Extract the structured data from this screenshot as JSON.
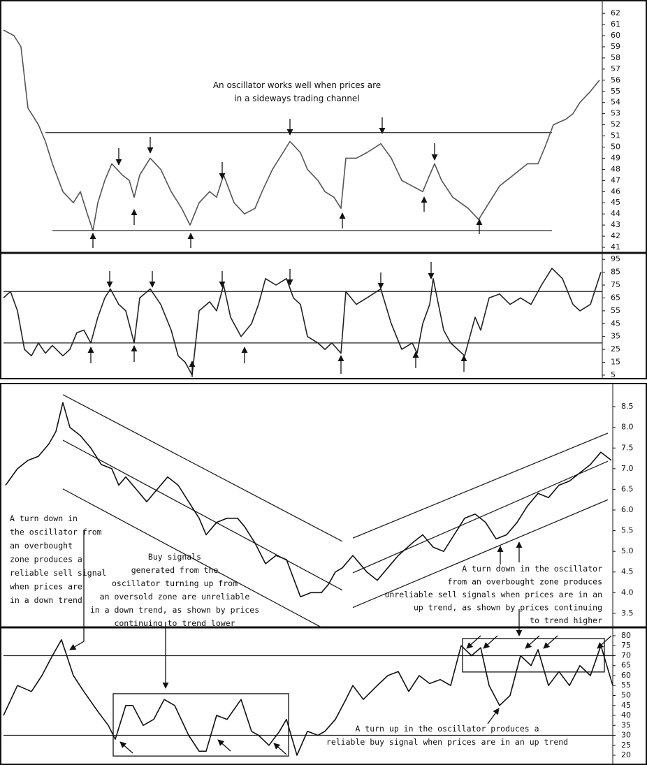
{
  "chart_data": [
    {
      "type": "line",
      "color": "#555555",
      "annotations": [
        [
          "An oscillator works well when prices are",
          "in a sideways trading channel"
        ]
      ],
      "x": [
        5,
        20,
        30,
        40,
        55,
        65,
        75,
        90,
        105,
        115,
        125,
        133,
        140,
        150,
        160,
        175,
        185,
        192,
        200,
        215,
        230,
        245,
        260,
        272,
        285,
        300,
        310,
        320,
        335,
        350,
        365,
        375,
        390,
        405,
        415,
        430,
        440,
        455,
        465,
        478,
        488,
        495,
        510,
        525,
        545,
        560,
        575,
        590,
        605,
        615,
        622,
        632,
        648,
        670,
        685,
        700,
        715,
        735,
        755,
        770,
        780,
        792,
        810,
        820,
        830,
        845,
        858
      ],
      "values": [
        60.5,
        60,
        59,
        53.5,
        52,
        50.5,
        48.5,
        46,
        45,
        46,
        44,
        42.5,
        45,
        47,
        48.5,
        47.5,
        47,
        45.5,
        47.5,
        49,
        48,
        46,
        44.5,
        43,
        45,
        46,
        45.5,
        47.5,
        45,
        44,
        44.5,
        46,
        48,
        49.5,
        50.5,
        49.5,
        48,
        47,
        46,
        45.5,
        44.5,
        49,
        49,
        49.5,
        50.3,
        49,
        47,
        46.5,
        46,
        47.5,
        48.5,
        47,
        45.5,
        44.5,
        43.5,
        45,
        46.5,
        47.5,
        48.5,
        48.5,
        50,
        52,
        52.5,
        53,
        54,
        55,
        56
      ],
      "lines": [
        {
          "x": [
            65,
            790
          ],
          "y": [
            51.3,
            51.3
          ]
        },
        {
          "x": [
            75,
            790
          ],
          "y": [
            42.5,
            42.5
          ]
        }
      ],
      "xlim": [
        5,
        862
      ],
      "ylim": [
        40.5,
        63.2
      ],
      "yticks": [
        41,
        42,
        43,
        44,
        45,
        46,
        47,
        48,
        49,
        50,
        51,
        52,
        53,
        54,
        55,
        56,
        57,
        58,
        59,
        60,
        61,
        62
      ]
    },
    {
      "type": "line",
      "color": "#222222",
      "x": [
        5,
        15,
        25,
        35,
        45,
        55,
        65,
        75,
        90,
        100,
        110,
        120,
        130,
        140,
        150,
        158,
        170,
        180,
        192,
        200,
        215,
        230,
        245,
        255,
        265,
        275,
        285,
        300,
        310,
        320,
        330,
        345,
        360,
        370,
        380,
        395,
        410,
        420,
        430,
        440,
        455,
        465,
        475,
        488,
        495,
        510,
        525,
        545,
        560,
        575,
        590,
        597,
        605,
        615,
        620,
        635,
        645,
        655,
        665,
        680,
        688,
        700,
        715,
        730,
        745,
        760,
        775,
        790,
        805,
        820,
        830,
        845,
        860
      ],
      "values": [
        65,
        70,
        55,
        25,
        20,
        30,
        22,
        28,
        20,
        25,
        38,
        40,
        30,
        50,
        65,
        72,
        60,
        55,
        30,
        65,
        72,
        60,
        40,
        20,
        15,
        5,
        55,
        62,
        55,
        75,
        50,
        35,
        45,
        60,
        80,
        75,
        80,
        65,
        60,
        35,
        30,
        25,
        30,
        22,
        70,
        60,
        65,
        72,
        45,
        25,
        30,
        22,
        45,
        60,
        80,
        40,
        30,
        25,
        20,
        50,
        40,
        65,
        68,
        60,
        65,
        60,
        75,
        88,
        80,
        60,
        55,
        60,
        85
      ],
      "lines": [
        {
          "x": [
            5,
            862
          ],
          "y": [
            70,
            70
          ]
        },
        {
          "x": [
            5,
            862
          ],
          "y": [
            30,
            30
          ]
        }
      ],
      "xlim": [
        5,
        862
      ],
      "ylim": [
        1.7,
        100
      ],
      "yticks": [
        5,
        15,
        25,
        35,
        45,
        55,
        65,
        75,
        85,
        95
      ]
    },
    {
      "type": "line",
      "color": "#111111",
      "annotations": [
        [
          "A turn down in",
          "the oscillator from",
          "an overbought",
          "zone produces a",
          "reliable sell signal",
          "when prices are",
          "in a down trend"
        ],
        [
          "Buy signals",
          "generated from the",
          "oscillator turning up from",
          "an oversold zone are unreliable",
          "in a down trend, as shown by prices",
          "continuing to trend lower"
        ],
        [
          "A turn down in the oscillator",
          "from an overbought zone produces",
          "unreliable sell signals when prices are in an",
          "up trend, as shown by prices continuing",
          "to trend higher"
        ]
      ],
      "x": [
        8,
        25,
        40,
        55,
        70,
        80,
        90,
        100,
        115,
        130,
        145,
        160,
        170,
        180,
        195,
        210,
        225,
        240,
        255,
        270,
        285,
        295,
        310,
        325,
        340,
        350,
        365,
        380,
        395,
        410,
        430,
        445,
        460,
        470,
        480,
        490,
        505,
        525,
        540,
        555,
        570,
        590,
        605,
        620,
        635,
        650,
        665,
        680,
        695,
        710,
        725,
        740,
        755,
        770,
        785,
        800,
        815,
        830,
        845,
        860,
        875
      ],
      "values": [
        6.6,
        7.0,
        7.2,
        7.3,
        7.6,
        7.9,
        8.6,
        8.0,
        7.8,
        7.5,
        7.1,
        7.0,
        6.6,
        6.8,
        6.5,
        6.2,
        6.5,
        6.8,
        6.6,
        6.2,
        5.8,
        5.4,
        5.7,
        5.8,
        5.8,
        5.6,
        5.2,
        4.7,
        4.9,
        4.8,
        3.9,
        4.0,
        4.0,
        4.2,
        4.5,
        4.6,
        4.9,
        4.5,
        4.3,
        4.6,
        4.9,
        5.2,
        5.4,
        5.1,
        5.0,
        5.4,
        5.8,
        5.9,
        5.7,
        5.3,
        5.4,
        5.7,
        6.1,
        6.4,
        6.3,
        6.6,
        6.7,
        6.9,
        7.1,
        7.4,
        7.2
      ],
      "lines": [
        {
          "x": [
            90,
            490
          ],
          "y": [
            8.79,
            5.24
          ]
        },
        {
          "x": [
            90,
            490
          ],
          "y": [
            7.69,
            4.06
          ]
        },
        {
          "x": [
            90,
            460
          ],
          "y": [
            6.51,
            3.16
          ]
        },
        {
          "x": [
            505,
            870
          ],
          "y": [
            5.32,
            7.86
          ]
        },
        {
          "x": [
            505,
            870
          ],
          "y": [
            4.48,
            7.18
          ]
        },
        {
          "x": [
            505,
            870
          ],
          "y": [
            3.64,
            6.25
          ]
        }
      ],
      "xlim": [
        5,
        877
      ],
      "ylim": [
        3.16,
        9.06
      ],
      "yticks": [
        3.5,
        {
          "value": 4,
          "label": "4.0"
        },
        4.5,
        {
          "value": 5,
          "label": "5.0"
        },
        5.5,
        {
          "value": 6,
          "label": "6.0"
        },
        6.5,
        {
          "value": 7,
          "label": "7.0"
        },
        7.5,
        {
          "value": 8,
          "label": "8.0"
        },
        8.5
      ]
    },
    {
      "type": "line",
      "color": "#111111",
      "annotations": [
        [
          "A turn up in the oscillator produces a",
          "reliable buy signal when prices are in an up trend"
        ]
      ],
      "x": [
        5,
        25,
        45,
        60,
        75,
        88,
        105,
        120,
        140,
        155,
        165,
        180,
        190,
        205,
        220,
        235,
        250,
        270,
        285,
        295,
        310,
        325,
        345,
        360,
        370,
        385,
        400,
        410,
        425,
        440,
        455,
        465,
        480,
        495,
        505,
        520,
        540,
        555,
        570,
        585,
        600,
        615,
        630,
        645,
        660,
        675,
        688,
        700,
        715,
        730,
        745,
        760,
        770,
        785,
        800,
        815,
        830,
        845,
        860,
        877
      ],
      "values": [
        40,
        55,
        52,
        60,
        70,
        78,
        60,
        52,
        42,
        35,
        28,
        45,
        45,
        35,
        38,
        48,
        45,
        30,
        22,
        22,
        40,
        38,
        48,
        32,
        30,
        25,
        32,
        38,
        20,
        32,
        30,
        32,
        38,
        48,
        55,
        48,
        55,
        60,
        62,
        52,
        60,
        56,
        58,
        55,
        75,
        70,
        74,
        55,
        45,
        50,
        70,
        65,
        73,
        55,
        62,
        55,
        65,
        60,
        75,
        55
      ],
      "lines": [
        {
          "x": [
            5,
            877
          ],
          "y": [
            70,
            70
          ]
        },
        {
          "x": [
            5,
            877
          ],
          "y": [
            30,
            30
          ]
        }
      ],
      "boxes": [
        {
          "x": [
            162,
            413
          ],
          "y": [
            19.6,
            50.9
          ]
        },
        {
          "x": [
            662,
            865
          ],
          "y": [
            61.8,
            78.6
          ]
        }
      ],
      "xlim": [
        5,
        877
      ],
      "ylim": [
        15.1,
        84.2
      ],
      "yticks": [
        20,
        25,
        30,
        35,
        40,
        45,
        50,
        55,
        60,
        65,
        70,
        75,
        80
      ]
    }
  ]
}
